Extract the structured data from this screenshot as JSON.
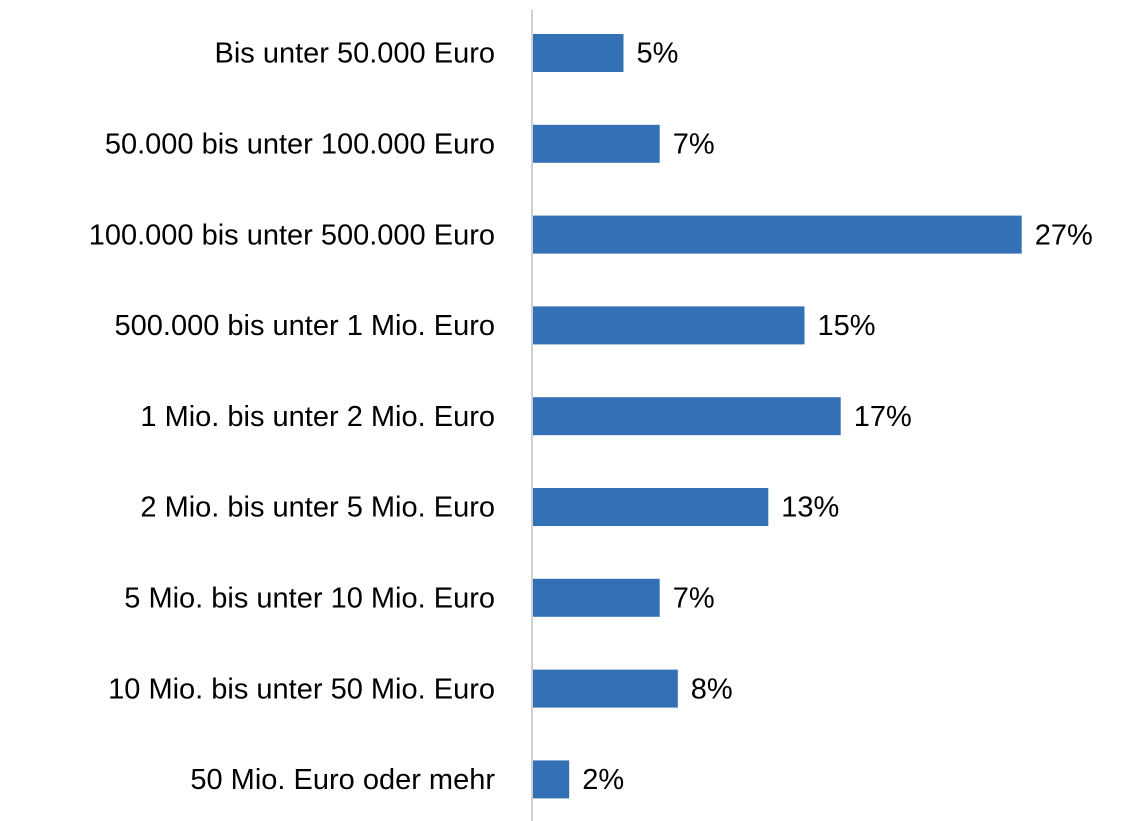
{
  "chart_data": {
    "type": "bar",
    "orientation": "horizontal",
    "categories": [
      "Bis unter 50.000 Euro",
      "50.000 bis unter 100.000 Euro",
      "100.000 bis unter 500.000 Euro",
      "500.000 bis unter 1 Mio. Euro",
      "1 Mio. bis unter 2 Mio. Euro",
      "2 Mio. bis unter 5 Mio. Euro",
      "5 Mio. bis unter 10 Mio. Euro",
      "10 Mio. bis unter 50 Mio. Euro",
      "50 Mio. Euro oder mehr"
    ],
    "values": [
      5,
      7,
      27,
      15,
      17,
      13,
      7,
      8,
      2
    ],
    "value_labels": [
      "5%",
      "7%",
      "27%",
      "15%",
      "17%",
      "13%",
      "7%",
      "8%",
      "2%"
    ],
    "color": "#3470b6"
  }
}
